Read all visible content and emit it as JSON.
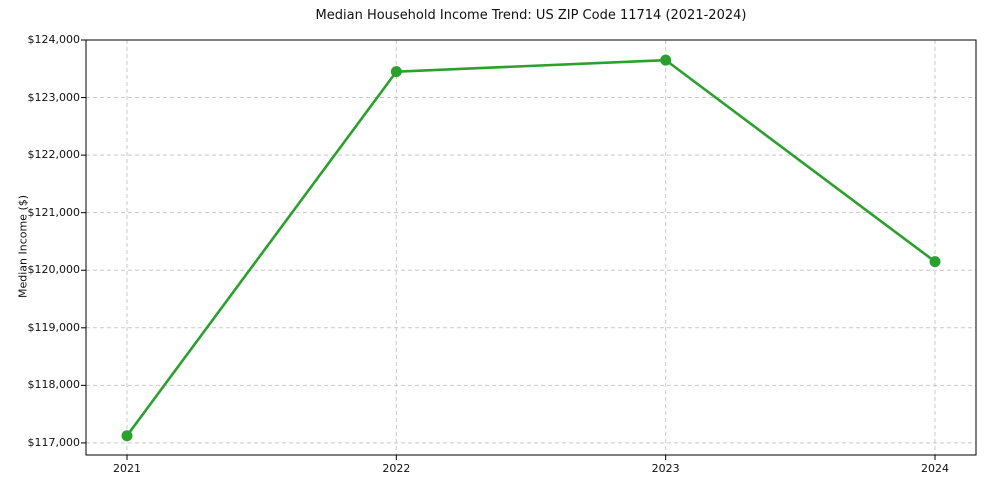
{
  "chart_data": {
    "type": "line",
    "title": "Median Household Income Trend: US ZIP Code 11714 (2021-2024)",
    "xlabel": "",
    "ylabel": "Median Income ($)",
    "categories": [
      "2021",
      "2022",
      "2023",
      "2024"
    ],
    "values": [
      117125,
      123450,
      123650,
      120150
    ],
    "y_ticks": [
      117000,
      118000,
      119000,
      120000,
      121000,
      122000,
      123000,
      124000
    ],
    "y_tick_labels": [
      "$117,000",
      "$118,000",
      "$119,000",
      "$120,000",
      "$121,000",
      "$122,000",
      "$123,000",
      "$124,000"
    ],
    "ylim": [
      116790,
      124000
    ],
    "grid": "dashed",
    "legend": "none",
    "colors": {
      "line": "#2ca02c",
      "marker": "#2ca02c",
      "grid": "#c9c9c9",
      "spine": "#000000",
      "text": "#111111",
      "background": "#ffffff"
    }
  }
}
